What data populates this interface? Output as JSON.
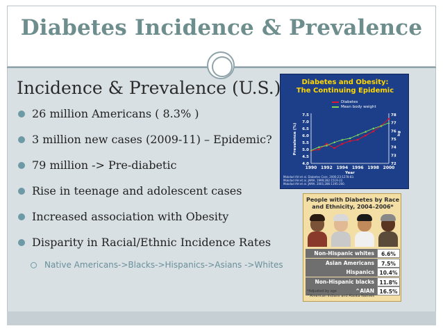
{
  "slide": {
    "title": "Diabetes Incidence & Prevalence",
    "heading": "Incidence & Prevalence (U.S.)",
    "bullets": [
      "26 million Americans ( 8.3% )",
      "3 million new cases (2009-11) – Epidemic?",
      "79 million -> Pre-diabetic",
      "Rise in teenage and adolescent cases",
      "Increased association with Obesity",
      "Disparity in Racial/Ethnic Incidence Rates"
    ],
    "sub_bullet": "Native Americans->Blacks->Hispanics->Asians ->Whites"
  },
  "colors": {
    "title": "#6e8e8e",
    "panel": "#d8e0e4",
    "bullet": "#6e9aa6",
    "chart_bg": "#1d3f8a",
    "chart_title": "#ffd700",
    "diabetes_line": "#e0142c",
    "weight_line": "#7ed957",
    "table_bg": "#f3dfa6"
  },
  "chart_data": {
    "type": "line",
    "title_line1": "Diabetes and Obesity:",
    "title_line2": "The Continuing Epidemic",
    "xlabel": "Year",
    "ylabel_left": "Prevalence (%)",
    "ylabel_right": "kg",
    "x": [
      1990,
      1991,
      1992,
      1993,
      1994,
      1995,
      1996,
      1997,
      1998,
      1999,
      2000
    ],
    "x_ticks": [
      "1990",
      "1992",
      "1994",
      "1996",
      "1998",
      "2000"
    ],
    "y_left_ticks": [
      "7.5",
      "7.0",
      "6.5",
      "6.0",
      "5.5",
      "5.0",
      "4.5",
      "4.0"
    ],
    "y_right_ticks": [
      "78",
      "77",
      "76",
      "75",
      "74",
      "73",
      "72"
    ],
    "ylim_left": [
      4.0,
      7.5
    ],
    "ylim_right": [
      72,
      78
    ],
    "series": [
      {
        "name": "Diabetes",
        "axis": "left",
        "values": [
          4.9,
          5.0,
          5.4,
          5.1,
          5.4,
          5.6,
          5.7,
          6.0,
          6.3,
          6.7,
          7.2
        ]
      },
      {
        "name": "Mean body weight",
        "axis": "right",
        "values": [
          73.6,
          74.0,
          74.2,
          74.6,
          74.9,
          75.1,
          75.5,
          75.9,
          76.3,
          76.6,
          77.0
        ]
      }
    ],
    "citations": [
      "Mokdad AH et al. Diabetes Care. 2000;23:1278-83.",
      "Mokdad AH et al. JAMA. 1999;282:1519-22.",
      "Mokdad AH et al. JAMA. 2001;286:1195-200."
    ]
  },
  "table": {
    "title_line1": "People with Diabetes by Race",
    "title_line2": "and Ethnicity, 2004–2006*",
    "rows": [
      {
        "category": "Non-Hispanic whites",
        "value": "6.6%"
      },
      {
        "category": "Asian Americans",
        "value": "7.5%"
      },
      {
        "category": "Hispanics",
        "value": "10.4%"
      },
      {
        "category": "Non-Hispanic blacks",
        "value": "11.8%"
      },
      {
        "category": "^AIAN",
        "value": "16.5%"
      }
    ],
    "notes": [
      "*Adjusted by age",
      "^American Indians and Alaska Natives"
    ]
  }
}
